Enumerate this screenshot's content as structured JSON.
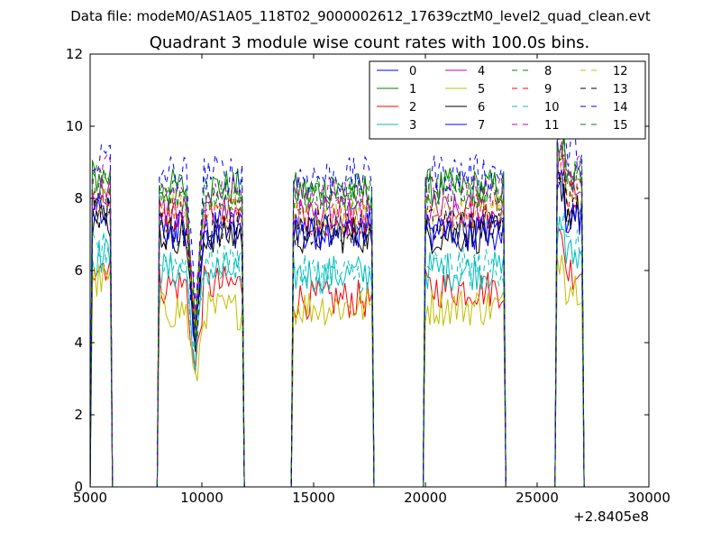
{
  "suptitle": "Data file: modeM0/AS1A05_118T02_9000002612_17639cztM0_level2_quad_clean.evt",
  "chart_data": {
    "type": "line",
    "title": "Quadrant 3 module wise count rates with 100.0s bins.",
    "xlabel": "",
    "ylabel": "",
    "x_offset_label": "+2.8405e8",
    "xlim": [
      5000,
      30000
    ],
    "ylim": [
      0,
      12
    ],
    "x_ticks": [
      5000,
      10000,
      15000,
      20000,
      25000,
      30000
    ],
    "x_tick_labels": [
      "5000",
      "10000",
      "15000",
      "20000",
      "25000",
      "30000"
    ],
    "y_ticks": [
      0,
      2,
      4,
      6,
      8,
      10,
      12
    ],
    "y_tick_labels": [
      "0",
      "2",
      "4",
      "6",
      "8",
      "10",
      "12"
    ],
    "grid": false,
    "legend_position": "top-right",
    "legend_columns": 4,
    "segments": [
      [
        5000,
        6000
      ],
      [
        8000,
        11900
      ],
      [
        14000,
        17700
      ],
      [
        19900,
        23600
      ],
      [
        25800,
        27100
      ]
    ],
    "series": [
      {
        "name": "0",
        "color": "#0000ff",
        "dash": "solid",
        "levels": [
          7.6,
          7.2,
          7.2,
          7.1,
          7.6
        ]
      },
      {
        "name": "1",
        "color": "#008000",
        "dash": "solid",
        "levels": [
          8.6,
          8.3,
          8.2,
          8.3,
          8.5
        ]
      },
      {
        "name": "2",
        "color": "#ff0000",
        "dash": "solid",
        "levels": [
          6.2,
          5.6,
          5.2,
          5.5,
          6.0
        ]
      },
      {
        "name": "3",
        "color": "#00bfbf",
        "dash": "solid",
        "levels": [
          6.4,
          6.0,
          5.9,
          6.0,
          6.4
        ]
      },
      {
        "name": "4",
        "color": "#bf00bf",
        "dash": "solid",
        "levels": [
          8.2,
          7.6,
          7.5,
          7.6,
          8.3
        ]
      },
      {
        "name": "5",
        "color": "#bfbf00",
        "dash": "solid",
        "levels": [
          5.7,
          4.9,
          5.0,
          5.0,
          5.6
        ]
      },
      {
        "name": "6",
        "color": "#000000",
        "dash": "solid",
        "levels": [
          7.4,
          7.0,
          7.0,
          7.0,
          7.6
        ]
      },
      {
        "name": "7",
        "color": "#0000ff",
        "dash": "solid",
        "levels": [
          7.5,
          7.1,
          7.1,
          7.1,
          7.5
        ]
      },
      {
        "name": "8",
        "color": "#008000",
        "dash": "dashed",
        "levels": [
          8.4,
          8.1,
          8.1,
          8.2,
          8.6
        ]
      },
      {
        "name": "9",
        "color": "#ff0000",
        "dash": "dashed",
        "levels": [
          8.0,
          7.6,
          7.5,
          7.6,
          8.0
        ]
      },
      {
        "name": "10",
        "color": "#00bfbf",
        "dash": "dashed",
        "levels": [
          6.6,
          6.2,
          5.9,
          6.1,
          6.6
        ]
      },
      {
        "name": "11",
        "color": "#bf00bf",
        "dash": "dashed",
        "levels": [
          8.7,
          8.2,
          8.1,
          8.2,
          8.7
        ]
      },
      {
        "name": "12",
        "color": "#bfbf00",
        "dash": "dashed",
        "levels": [
          8.0,
          7.6,
          7.5,
          7.6,
          8.0
        ]
      },
      {
        "name": "13",
        "color": "#000000",
        "dash": "dashed",
        "levels": [
          7.5,
          7.1,
          7.2,
          7.2,
          7.7
        ]
      },
      {
        "name": "14",
        "color": "#0000ff",
        "dash": "dashed",
        "levels": [
          9.1,
          8.7,
          8.6,
          8.7,
          9.3
        ]
      },
      {
        "name": "15",
        "color": "#008000",
        "dash": "dashed",
        "levels": [
          8.5,
          8.1,
          8.1,
          8.2,
          8.6
        ]
      }
    ]
  }
}
